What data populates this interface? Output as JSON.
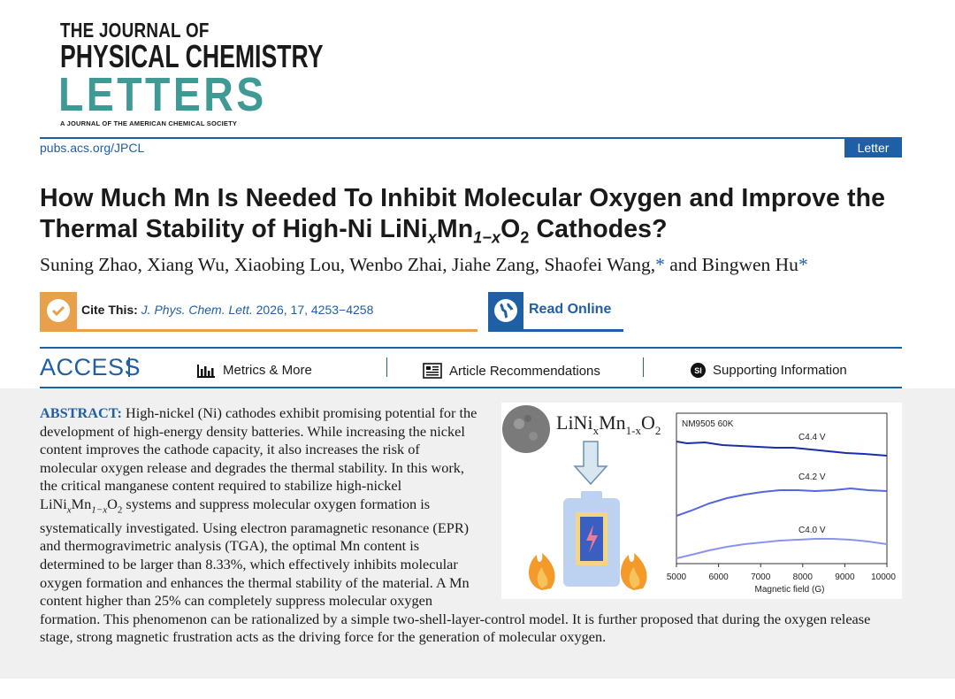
{
  "masthead": {
    "line1": "THE JOURNAL OF",
    "line2": "PHYSICAL CHEMISTRY",
    "line3": "LETTERS",
    "line4": "A JOURNAL OF THE AMERICAN CHEMICAL SOCIETY"
  },
  "header": {
    "site_link": "pubs.acs.org/JPCL",
    "article_type": "Letter"
  },
  "article": {
    "title_part1": "How Much Mn Is Needed To Inhibit Molecular Oxygen and Improve the Thermal Stability of High-Ni LiNi",
    "title_sub_x": "x",
    "title_mn": "Mn",
    "title_sub_1mx": "1−x",
    "title_o": "O",
    "title_sub_2": "2",
    "title_end": " Cathodes?",
    "authors_main": "Suning Zhao, Xiang Wu, Xiaobing Lou, Wenbo Zhai, Jiahe Zang, Shaofei Wang,",
    "authors_end": " and Bingwen Hu",
    "corresponding_mark": "*"
  },
  "cite": {
    "label": "Cite This:",
    "journal": "J. Phys. Chem. Lett.",
    "details": " 2026, 17, 4253−4258"
  },
  "read_online": "Read Online",
  "access_bar": {
    "access": "ACCESS",
    "metrics": "Metrics & More",
    "recommendations": "Article Recommendations",
    "si_badge": "SI",
    "supporting": "Supporting Information"
  },
  "abstract": {
    "lead": "ABSTRACT:",
    "p1": " High-nickel (Ni) cathodes exhibit promising potential for the development of high-energy density batteries. While increasing the nickel content improves the cathode capacity, it also increases the risk of molecular oxygen release and degrades the thermal stability. In this work, the critical manganese content required to stabilize high-nickel LiNi",
    "x": "x",
    "mn": "Mn",
    "one_minus_x": "1−x",
    "o": "O",
    "two": "2",
    "p2": " systems and suppress molecular oxygen formation is systematically investigated. Using electron paramagnetic resonance (EPR) and thermogravimetric analysis (TGA), the optimal Mn content is determined to be larger than 8.33%, which effectively inhibits molecular oxygen formation and enhances the thermal stability of the material. A Mn content higher than 25% can completely suppress molecular oxygen formation. This phenomenon can be rationalized by a simple two-shell-layer-control model. It is further proposed that during the oxygen release stage, strong magnetic frustration acts as the driving force for the generation of molecular oxygen."
  },
  "toc": {
    "formula_li": "LiNi",
    "formula_x": "x",
    "formula_mn": "Mn",
    "formula_1x": "1-x",
    "formula_o": "O",
    "formula_2": "2",
    "plot_title": "NM9505 60K",
    "series": [
      "C4.4 V",
      "C4.2 V",
      "C4.0 V"
    ],
    "xticks": [
      "5000",
      "6000",
      "7000",
      "8000",
      "9000",
      "10000"
    ],
    "xlabel": "Magnetic field (G)",
    "colors": {
      "c44": "#1a2fa8",
      "c42": "#5566e0",
      "c40": "#8a94ee",
      "flame": "#f39a2a",
      "battery": "#bcd2f0"
    }
  },
  "colors": {
    "brand_blue": "#1f5fa6",
    "teal": "#3f9a96",
    "orange": "#e8a04a"
  }
}
